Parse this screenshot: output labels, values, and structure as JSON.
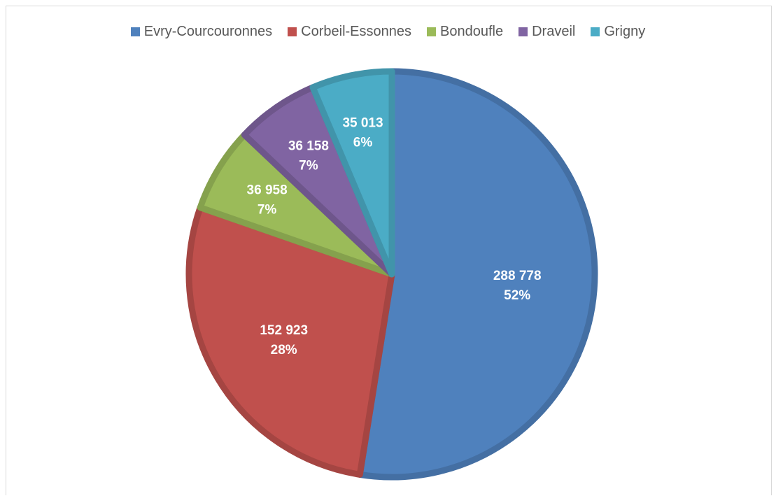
{
  "chart_data": {
    "type": "pie",
    "title": "",
    "categories": [
      "Evry-Courcouronnes",
      "Corbeil-Essonnes",
      "Bondoufle",
      "Draveil",
      "Grigny"
    ],
    "values": [
      288778,
      152923,
      36958,
      36158,
      35013
    ],
    "value_labels": [
      "288 778",
      "152 923",
      "36 958",
      "36 158",
      "35 013"
    ],
    "percent_labels": [
      "52%",
      "28%",
      "7%",
      "7%",
      "6%"
    ],
    "colors": [
      "#4f81bd",
      "#c0504d",
      "#9bbb59",
      "#8064a2",
      "#4bacc6"
    ],
    "legend_position": "top"
  }
}
